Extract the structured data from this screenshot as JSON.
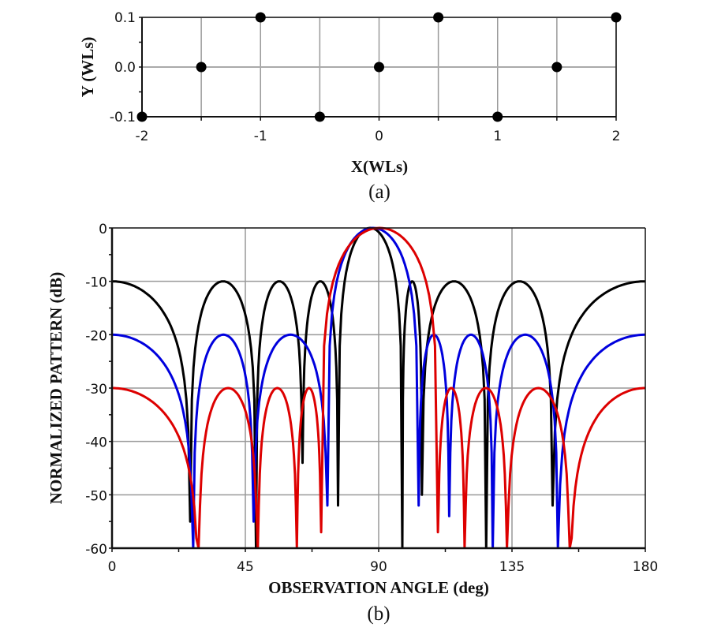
{
  "chart_data": [
    {
      "id": "a",
      "type": "scatter",
      "caption": "(a)",
      "title": "",
      "xlabel": "X(WLs)",
      "ylabel": "Y (WLs)",
      "xlim": [
        -2,
        2
      ],
      "ylim": [
        -0.1,
        0.1
      ],
      "xticks": [
        -2,
        -1,
        0,
        1,
        2
      ],
      "xtick_labels": [
        "-2",
        "-1",
        "0",
        "1",
        "2"
      ],
      "yticks": [
        0.1,
        0.0,
        -0.1
      ],
      "ytick_labels": [
        "0.1",
        "0.0",
        "-0.1"
      ],
      "x_minor_grid": [
        -1.5,
        -0.5,
        0.5,
        1.5
      ],
      "grid": true,
      "marker_color": "#000000",
      "points": [
        {
          "x": -2.0,
          "y": -0.1
        },
        {
          "x": -1.5,
          "y": 0.0
        },
        {
          "x": -1.0,
          "y": 0.1
        },
        {
          "x": -0.5,
          "y": -0.1
        },
        {
          "x": 0.0,
          "y": 0.0
        },
        {
          "x": 0.5,
          "y": 0.1
        },
        {
          "x": 1.0,
          "y": -0.1
        },
        {
          "x": 1.5,
          "y": 0.0
        },
        {
          "x": 2.0,
          "y": 0.1
        }
      ]
    },
    {
      "id": "b",
      "type": "line",
      "caption": "(b)",
      "title": "",
      "xlabel": "OBSERVATION ANGLE (deg)",
      "ylabel": "NORMALIZED PATTERN (dB)",
      "xlim": [
        0,
        180
      ],
      "ylim": [
        -60,
        0
      ],
      "xticks": [
        0,
        45,
        90,
        135,
        180
      ],
      "xtick_labels": [
        "0",
        "45",
        "90",
        "135",
        "180"
      ],
      "yticks": [
        0,
        -10,
        -20,
        -30,
        -40,
        -50,
        -60
      ],
      "ytick_labels": [
        "0",
        "-10",
        "-20",
        "-30",
        "-40",
        "-50",
        "-60"
      ],
      "grid": true,
      "legend": "none",
      "series": [
        {
          "name": "black (-10 dB sidelobes)",
          "color": "#000000",
          "sidelobe_level": -10,
          "main_peak": 88.5,
          "nulls": [
            {
              "x": 26.4,
              "depth": -55
            },
            {
              "x": 48.6,
              "depth": -60
            },
            {
              "x": 64.3,
              "depth": -44
            },
            {
              "x": 76.3,
              "depth": -52
            },
            {
              "x": 98.0,
              "depth": -60
            },
            {
              "x": 104.6,
              "depth": -50
            },
            {
              "x": 126.3,
              "depth": -60
            },
            {
              "x": 148.7,
              "depth": -52
            }
          ]
        },
        {
          "name": "blue (-20 dB sidelobes)",
          "color": "#0000dd",
          "sidelobe_level": -20,
          "main_peak": 89.0,
          "nulls": [
            {
              "x": 27.4,
              "depth": -60
            },
            {
              "x": 47.8,
              "depth": -55
            },
            {
              "x": 72.7,
              "depth": -52
            },
            {
              "x": 103.5,
              "depth": -52
            },
            {
              "x": 113.8,
              "depth": -54
            },
            {
              "x": 128.5,
              "depth": -60
            },
            {
              "x": 150.5,
              "depth": -60
            }
          ]
        },
        {
          "name": "red (-30 dB sidelobes)",
          "color": "#dd0000",
          "sidelobe_level": -30,
          "main_peak": 91.0,
          "nulls": [
            {
              "x": 29.2,
              "depth": -60
            },
            {
              "x": 49.2,
              "depth": -60
            },
            {
              "x": 62.4,
              "depth": -60
            },
            {
              "x": 70.6,
              "depth": -57
            },
            {
              "x": 110.0,
              "depth": -57
            },
            {
              "x": 119.0,
              "depth": -60
            },
            {
              "x": 133.3,
              "depth": -60
            },
            {
              "x": 154.5,
              "depth": -60
            }
          ]
        }
      ]
    }
  ]
}
